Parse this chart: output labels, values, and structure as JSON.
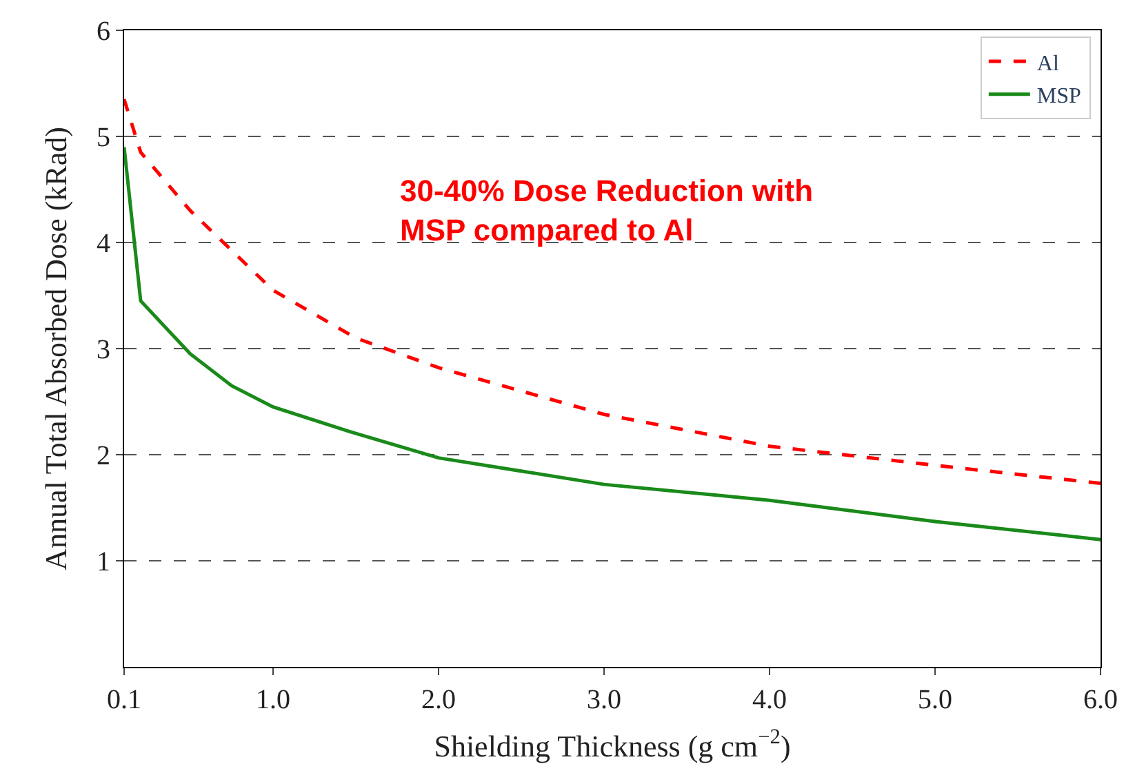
{
  "chart_data": {
    "type": "line",
    "xlabel": "Shielding Thickness (g cm$^{−2}$)",
    "ylabel": "Annual Total Absorbed Dose (kRad)",
    "xlim": [
      0.1,
      6.0
    ],
    "xticks": [
      0.1,
      {
        "value": 1,
        "label": "1.0"
      },
      {
        "value": 2,
        "label": "2.0"
      },
      {
        "value": 3,
        "label": "3.0"
      },
      {
        "value": 4,
        "label": "4.0"
      },
      {
        "value": 5,
        "label": "5.0"
      },
      {
        "value": 6,
        "label": "6.0"
      }
    ],
    "ylim": [
      0,
      6
    ],
    "yticks": [
      1,
      2,
      3,
      4,
      5,
      6
    ],
    "grid": "y",
    "legend": "top right",
    "marker": "none",
    "series": [
      {
        "name": "Al",
        "color": "#ff0000",
        "line_style": "dashed",
        "x": [
          0.1,
          0.2,
          0.5,
          1.0,
          1.5,
          2.0,
          3.0,
          4.0,
          5.0,
          6.0
        ],
        "values": [
          5.35,
          4.85,
          4.3,
          3.55,
          3.1,
          2.82,
          2.38,
          2.08,
          1.9,
          1.73
        ]
      },
      {
        "name": "MSP",
        "color": "#1a8a1a",
        "line_style": "solid",
        "x": [
          0.1,
          0.2,
          0.5,
          0.75,
          1.0,
          1.5,
          2.0,
          3.0,
          4.0,
          5.0,
          6.0
        ],
        "values": [
          4.9,
          3.45,
          2.95,
          2.65,
          2.45,
          2.2,
          1.97,
          1.72,
          1.57,
          1.37,
          1.2
        ]
      }
    ],
    "annotations": [
      "30-40% Dose Reduction with MSP compared to Al"
    ]
  }
}
